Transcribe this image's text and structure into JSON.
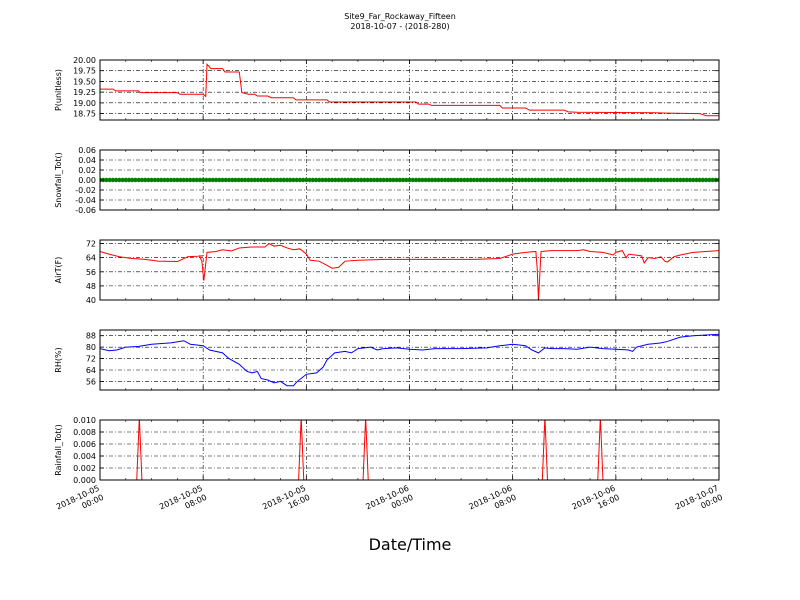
{
  "figure": {
    "title": "Site9_Far_Rockaway_Fifteen",
    "subtitle": "2018-10-07 - (2018-280)",
    "xlabel": "Date/Time",
    "x_ticks": [
      {
        "t": 0,
        "l1": "2018-10-05",
        "l2": "00:00"
      },
      {
        "t": 8,
        "l1": "2018-10-05",
        "l2": "08:00"
      },
      {
        "t": 16,
        "l1": "2018-10-05",
        "l2": "16:00"
      },
      {
        "t": 24,
        "l1": "2018-10-06",
        "l2": "00:00"
      },
      {
        "t": 32,
        "l1": "2018-10-06",
        "l2": "08:00"
      },
      {
        "t": 40,
        "l1": "2018-10-06",
        "l2": "16:00"
      },
      {
        "t": 48,
        "l1": "2018-10-07",
        "l2": "00:00"
      }
    ]
  },
  "chart_data": [
    {
      "type": "line",
      "ylabel": "P(unitless)",
      "color": "#ff0000",
      "ylim": [
        18.6,
        20.0
      ],
      "yticks": [
        18.75,
        19.0,
        19.25,
        19.5,
        19.75,
        20.0
      ],
      "ytick_labels": [
        "18.75",
        "19.00",
        "19.25",
        "19.50",
        "19.75",
        "20.00"
      ],
      "grid": "dashdot",
      "points": [
        [
          0,
          19.32
        ],
        [
          1,
          19.32
        ],
        [
          1.2,
          19.28
        ],
        [
          3,
          19.28
        ],
        [
          3.1,
          19.24
        ],
        [
          6,
          19.24
        ],
        [
          6.2,
          19.2
        ],
        [
          8,
          19.2
        ],
        [
          8.2,
          19.15
        ],
        [
          8.3,
          19.9
        ],
        [
          8.6,
          19.8
        ],
        [
          9.5,
          19.8
        ],
        [
          9.7,
          19.72
        ],
        [
          10.6,
          19.72
        ],
        [
          10.8,
          19.72
        ],
        [
          11,
          19.24
        ],
        [
          11.5,
          19.2
        ],
        [
          12,
          19.2
        ],
        [
          12.2,
          19.16
        ],
        [
          13,
          19.16
        ],
        [
          13.3,
          19.12
        ],
        [
          15,
          19.12
        ],
        [
          15.2,
          19.07
        ],
        [
          17.6,
          19.07
        ],
        [
          17.8,
          19.02
        ],
        [
          24.5,
          19.02
        ],
        [
          24.7,
          18.97
        ],
        [
          25.5,
          18.97
        ],
        [
          25.7,
          18.94
        ],
        [
          31,
          18.94
        ],
        [
          31.2,
          18.88
        ],
        [
          33,
          18.88
        ],
        [
          33.3,
          18.83
        ],
        [
          36,
          18.83
        ],
        [
          36.3,
          18.79
        ],
        [
          37,
          18.78
        ],
        [
          43,
          18.77
        ],
        [
          44,
          18.76
        ],
        [
          46.5,
          18.75
        ],
        [
          47,
          18.7
        ],
        [
          48,
          18.7
        ]
      ]
    },
    {
      "type": "scatter",
      "ylabel": "Snowfall_Tot()",
      "color": "#008000",
      "ylim": [
        -0.06,
        0.06
      ],
      "yticks": [
        -0.06,
        -0.04,
        -0.02,
        0.0,
        0.02,
        0.04,
        0.06
      ],
      "ytick_labels": [
        "-0.06",
        "-0.04",
        "-0.02",
        "0.00",
        "0.02",
        "0.04",
        "0.06"
      ],
      "grid": "dashdot",
      "constant_value": 0.0,
      "x_range": [
        0,
        48
      ],
      "interval": 0.25
    },
    {
      "type": "line",
      "ylabel": "AirT(F)",
      "color": "#ff0000",
      "ylim": [
        40,
        74
      ],
      "yticks": [
        40,
        48,
        56,
        64,
        72
      ],
      "ytick_labels": [
        "40",
        "48",
        "56",
        "64",
        "72"
      ],
      "grid": "dashdot",
      "points": [
        [
          0,
          67.5
        ],
        [
          0.7,
          66
        ],
        [
          1.5,
          64.5
        ],
        [
          2.5,
          63.5
        ],
        [
          3.5,
          63
        ],
        [
          4.5,
          62
        ],
        [
          6,
          61.8
        ],
        [
          6.8,
          64.5
        ],
        [
          8,
          65
        ],
        [
          7.7,
          65
        ],
        [
          7.9,
          62
        ],
        [
          8.05,
          51
        ],
        [
          8.3,
          67
        ],
        [
          9,
          67.5
        ],
        [
          9.5,
          68.5
        ],
        [
          10.2,
          67.8
        ],
        [
          10.8,
          69.5
        ],
        [
          11.7,
          70
        ],
        [
          12.8,
          70
        ],
        [
          13.1,
          72
        ],
        [
          13.5,
          70.5
        ],
        [
          14,
          71
        ],
        [
          14.5,
          69.5
        ],
        [
          15,
          68.5
        ],
        [
          15.5,
          69
        ],
        [
          16,
          66
        ],
        [
          16.3,
          62.5
        ],
        [
          17,
          62
        ],
        [
          17.5,
          60
        ],
        [
          18,
          58
        ],
        [
          18.5,
          58.5
        ],
        [
          19,
          62
        ],
        [
          20,
          62.5
        ],
        [
          22,
          63
        ],
        [
          25,
          63
        ],
        [
          29,
          63
        ],
        [
          31,
          63.5
        ],
        [
          32,
          66
        ],
        [
          33,
          67
        ],
        [
          33.8,
          67.5
        ],
        [
          33.9,
          58
        ],
        [
          34,
          40
        ],
        [
          34.2,
          67.5
        ],
        [
          35,
          68
        ],
        [
          37,
          68
        ],
        [
          37.5,
          68.5
        ],
        [
          38,
          67.5
        ],
        [
          39,
          67
        ],
        [
          39.8,
          65.5
        ],
        [
          40,
          67
        ],
        [
          40.5,
          68
        ],
        [
          40.8,
          64
        ],
        [
          41,
          66
        ],
        [
          42,
          65
        ],
        [
          42.2,
          61
        ],
        [
          42.5,
          64
        ],
        [
          43,
          63.5
        ],
        [
          43.5,
          64.5
        ],
        [
          43.8,
          62
        ],
        [
          44,
          61.5
        ],
        [
          44.5,
          64.5
        ],
        [
          45,
          65.5
        ],
        [
          46,
          67
        ],
        [
          48,
          68
        ]
      ]
    },
    {
      "type": "line",
      "ylabel": "RH(%)",
      "color": "#0000ff",
      "ylim": [
        50,
        92
      ],
      "yticks": [
        56,
        64,
        72,
        80,
        88
      ],
      "ytick_labels": [
        "56",
        "64",
        "72",
        "80",
        "88"
      ],
      "grid": "dashdot",
      "points": [
        [
          0,
          79
        ],
        [
          0.7,
          77.5
        ],
        [
          1.3,
          78
        ],
        [
          2,
          80
        ],
        [
          3,
          80.5
        ],
        [
          4,
          82
        ],
        [
          5.5,
          83
        ],
        [
          6.5,
          84.5
        ],
        [
          7,
          82
        ],
        [
          8,
          81
        ],
        [
          8.5,
          78
        ],
        [
          9.5,
          76
        ],
        [
          10,
          72
        ],
        [
          10.8,
          68
        ],
        [
          11.4,
          63
        ],
        [
          11.8,
          62
        ],
        [
          12.2,
          63
        ],
        [
          12.5,
          58
        ],
        [
          13,
          57
        ],
        [
          13.5,
          55
        ],
        [
          14,
          56
        ],
        [
          14.5,
          53
        ],
        [
          15,
          53
        ],
        [
          15.3,
          56
        ],
        [
          16,
          61
        ],
        [
          16.8,
          62
        ],
        [
          17.3,
          66
        ],
        [
          17.6,
          71
        ],
        [
          18.2,
          76
        ],
        [
          19,
          77
        ],
        [
          19.5,
          76
        ],
        [
          20,
          79
        ],
        [
          21,
          80
        ],
        [
          21.5,
          78
        ],
        [
          22,
          79
        ],
        [
          23,
          79.5
        ],
        [
          24,
          78.5
        ],
        [
          25,
          78
        ],
        [
          26,
          79
        ],
        [
          28,
          79
        ],
        [
          30,
          79.5
        ],
        [
          31,
          81
        ],
        [
          32,
          82
        ],
        [
          33,
          81
        ],
        [
          33.5,
          78
        ],
        [
          34,
          76
        ],
        [
          34.5,
          79.5
        ],
        [
          35,
          79
        ],
        [
          36,
          79
        ],
        [
          37,
          78.5
        ],
        [
          38,
          80
        ],
        [
          39,
          79
        ],
        [
          40,
          78.5
        ],
        [
          41,
          78
        ],
        [
          41.3,
          77
        ],
        [
          41.6,
          80
        ],
        [
          42.5,
          82
        ],
        [
          43,
          82.5
        ],
        [
          43.5,
          83
        ],
        [
          44,
          84
        ],
        [
          45,
          87
        ],
        [
          46,
          88
        ],
        [
          47,
          88.5
        ],
        [
          48,
          89
        ]
      ]
    },
    {
      "type": "line",
      "ylabel": "Rainfall_Tot()",
      "color": "#ff0000",
      "ylim": [
        0.0,
        0.01
      ],
      "yticks": [
        0.0,
        0.002,
        0.004,
        0.006,
        0.008,
        0.01
      ],
      "ytick_labels": [
        "0.000",
        "0.002",
        "0.004",
        "0.006",
        "0.008",
        "0.010"
      ],
      "grid": "dashdot",
      "points": [
        [
          0,
          0
        ],
        [
          2.85,
          0
        ],
        [
          3.05,
          0.0105
        ],
        [
          3.25,
          0
        ],
        [
          15.4,
          0
        ],
        [
          15.6,
          0.0105
        ],
        [
          15.8,
          0
        ],
        [
          20.4,
          0
        ],
        [
          20.6,
          0.0105
        ],
        [
          20.8,
          0
        ],
        [
          34.3,
          0
        ],
        [
          34.5,
          0.0105
        ],
        [
          34.7,
          0
        ],
        [
          38.6,
          0
        ],
        [
          38.8,
          0.0105
        ],
        [
          39.0,
          0
        ],
        [
          48,
          0
        ]
      ]
    }
  ]
}
